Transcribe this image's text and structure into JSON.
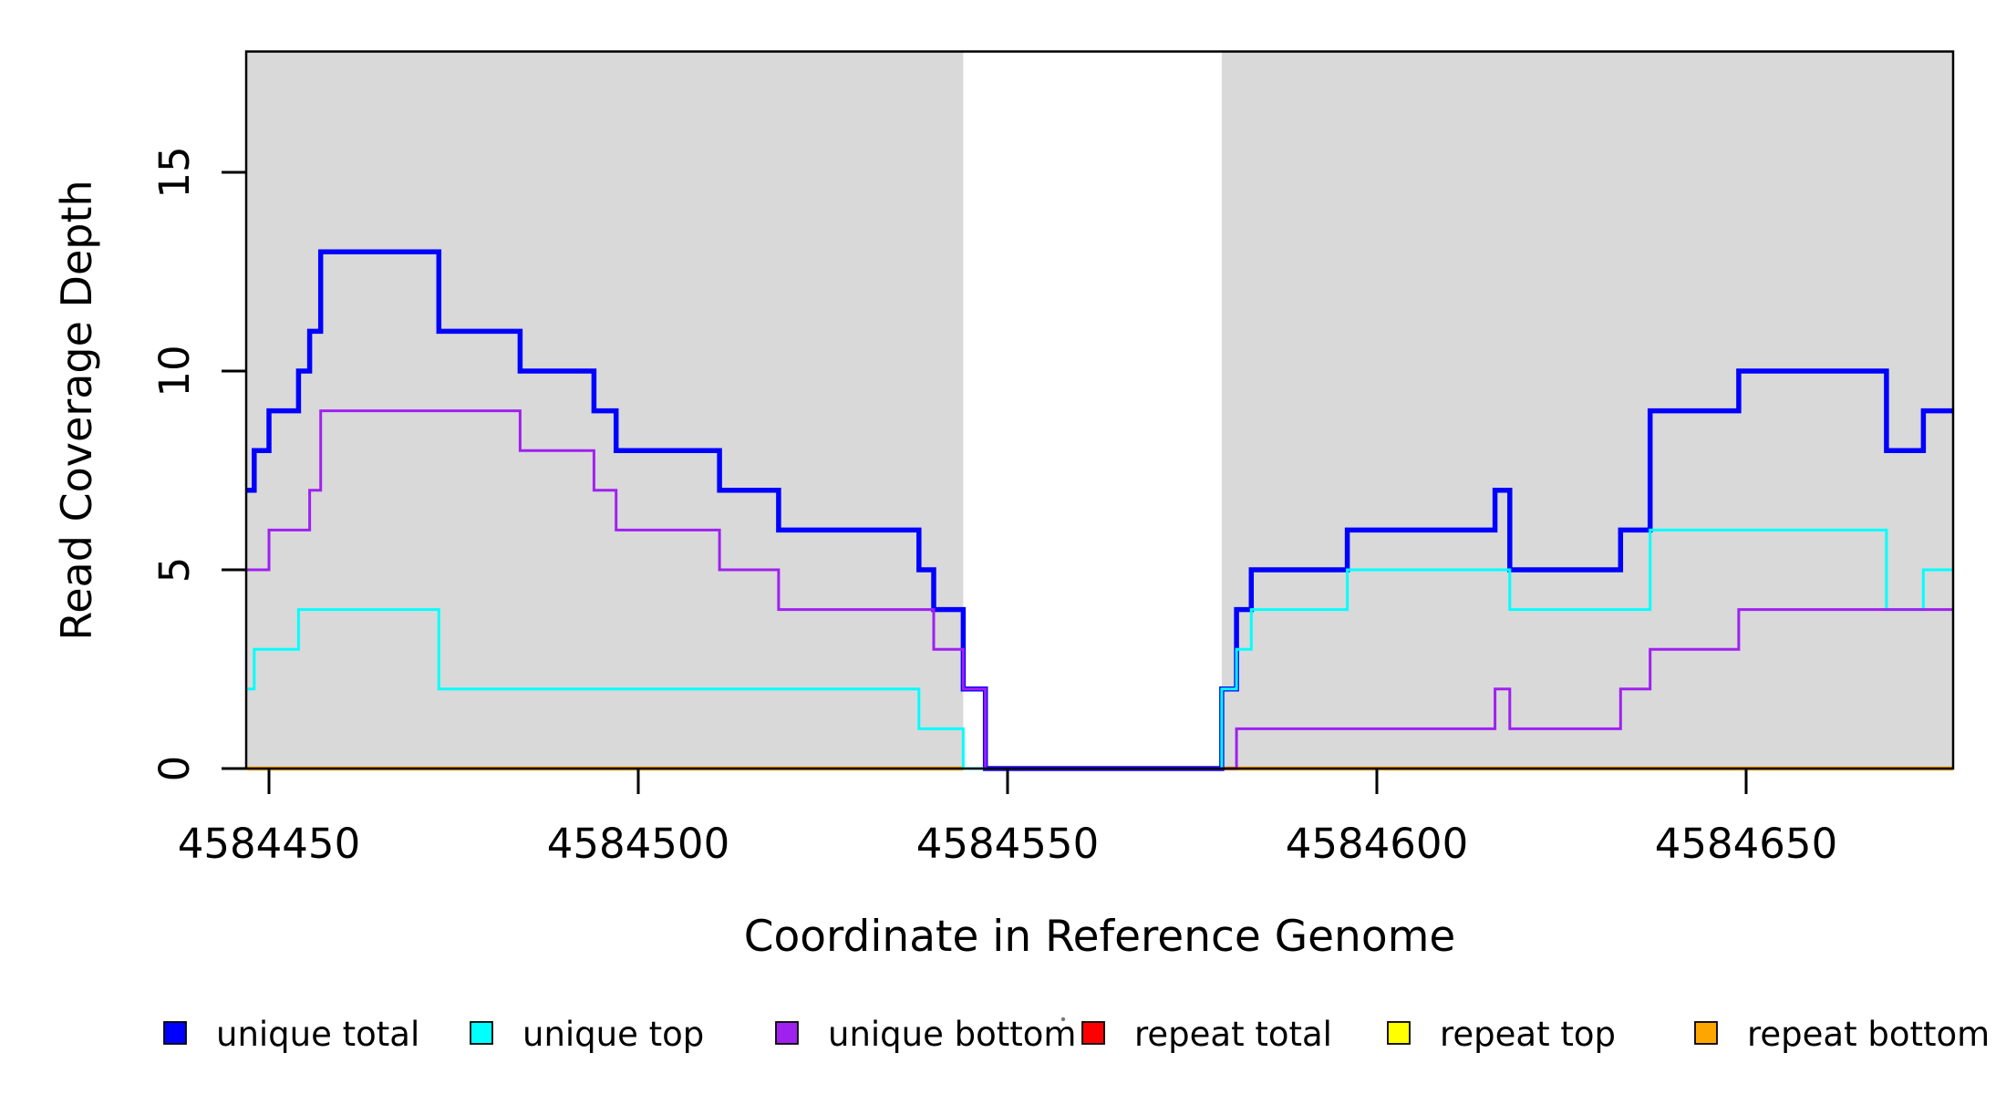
{
  "chart_data": {
    "type": "line",
    "subtype": "step-coverage-plot",
    "title": "",
    "xlabel": "Coordinate in Reference Genome",
    "ylabel": "Read Coverage Depth",
    "x_ticks": [
      4584450,
      4584500,
      4584550,
      4584600,
      4584650
    ],
    "y_ticks": [
      0,
      5,
      10,
      15
    ],
    "x_range": [
      4584447,
      4584678
    ],
    "y_range": [
      0,
      18
    ],
    "grid": false,
    "legend_position": "bottom",
    "plot_background_color": "#ffffff",
    "coverage_region_color": "#d9d9d9",
    "coverage_regions": [
      [
        4584447,
        4584544
      ],
      [
        4584579,
        4584678
      ]
    ],
    "gap_region": [
      4584544,
      4584579
    ],
    "series": [
      {
        "name": "unique total",
        "color": "#0000ff",
        "segments": [
          {
            "steps": [
              [
                4584447,
                7
              ],
              [
                4584448,
                8
              ],
              [
                4584450,
                9
              ],
              [
                4584454,
                10
              ],
              [
                4584455.5,
                11
              ],
              [
                4584457,
                13
              ],
              [
                4584473,
                11
              ],
              [
                4584484,
                10
              ],
              [
                4584494,
                9
              ],
              [
                4584497,
                8
              ],
              [
                4584511,
                7
              ],
              [
                4584519,
                6
              ],
              [
                4584538,
                5
              ],
              [
                4584540,
                4
              ],
              [
                4584544,
                2
              ],
              [
                4584547,
                0
              ],
              [
                4584579,
                2
              ],
              [
                4584581,
                4
              ],
              [
                4584583,
                5
              ],
              [
                4584596,
                6
              ],
              [
                4584616,
                7
              ],
              [
                4584618,
                5
              ],
              [
                4584633,
                6
              ],
              [
                4584637,
                9
              ],
              [
                4584649,
                10
              ],
              [
                4584669,
                8
              ],
              [
                4584674,
                9
              ]
            ],
            "end": 4584678
          }
        ]
      },
      {
        "name": "unique top",
        "color": "#00ffff",
        "segments": [
          {
            "steps": [
              [
                4584447,
                2
              ],
              [
                4584448,
                3
              ],
              [
                4584454,
                4
              ],
              [
                4584473,
                2
              ],
              [
                4584538,
                1
              ],
              [
                4584544,
                0
              ],
              [
                4584579,
                2
              ],
              [
                4584581,
                3
              ],
              [
                4584583,
                4
              ],
              [
                4584596,
                5
              ],
              [
                4584618,
                4
              ],
              [
                4584637,
                6
              ],
              [
                4584669,
                4
              ],
              [
                4584674,
                5
              ]
            ],
            "end": 4584678
          }
        ]
      },
      {
        "name": "unique bottom",
        "color": "#a020f0",
        "segments": [
          {
            "steps": [
              [
                4584447,
                5
              ],
              [
                4584450,
                6
              ],
              [
                4584455.5,
                7
              ],
              [
                4584457,
                9
              ],
              [
                4584484,
                8
              ],
              [
                4584494,
                7
              ],
              [
                4584497,
                6
              ],
              [
                4584511,
                5
              ],
              [
                4584519,
                4
              ],
              [
                4584540,
                3
              ],
              [
                4584544,
                2
              ],
              [
                4584547,
                0
              ],
              [
                4584581,
                1
              ],
              [
                4584616,
                2
              ],
              [
                4584618,
                1
              ],
              [
                4584633,
                2
              ],
              [
                4584637,
                3
              ],
              [
                4584649,
                4
              ]
            ],
            "end": 4584678
          }
        ]
      },
      {
        "name": "repeat total",
        "color": "#ff0000",
        "segments": [
          {
            "steps": [
              [
                4584447,
                0
              ]
            ],
            "end": 4584544
          },
          {
            "steps": [
              [
                4584579,
                0
              ]
            ],
            "end": 4584678
          }
        ]
      },
      {
        "name": "repeat top",
        "color": "#ffff00",
        "segments": [
          {
            "steps": [
              [
                4584447,
                0
              ]
            ],
            "end": 4584544
          },
          {
            "steps": [
              [
                4584579,
                0
              ]
            ],
            "end": 4584678
          }
        ]
      },
      {
        "name": "repeat bottom",
        "color": "#ffa500",
        "segments": [
          {
            "steps": [
              [
                4584447,
                0
              ]
            ],
            "end": 4584544
          },
          {
            "steps": [
              [
                4584579,
                0
              ]
            ],
            "end": 4584678
          }
        ]
      }
    ]
  }
}
